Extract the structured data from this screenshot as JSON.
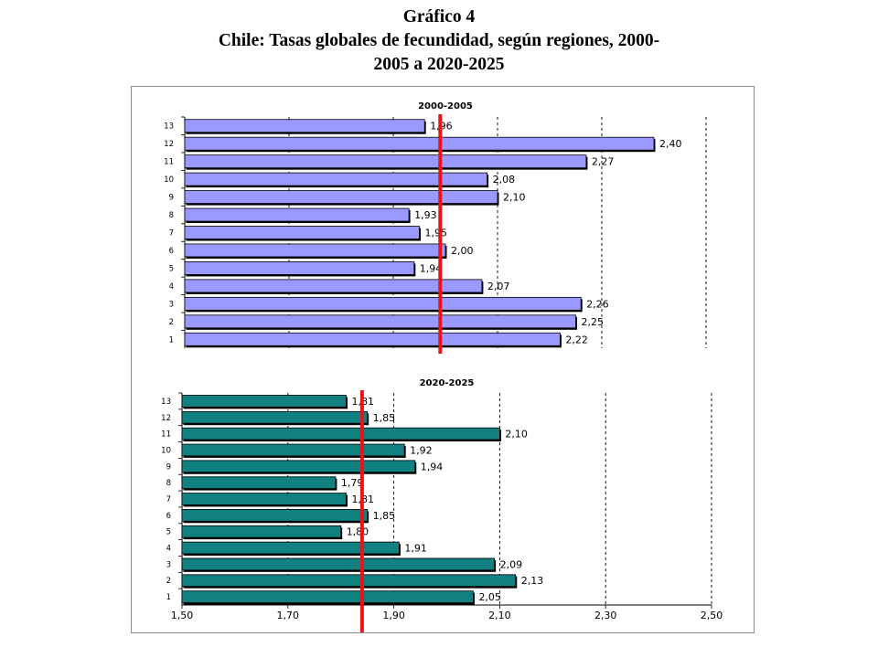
{
  "page": {
    "title_line1": "Gráfico 4",
    "title_line2": "Chile: Tasas globales de fecundidad, según regiones, 2000-",
    "title_line3": "2005 a 2020-2025"
  },
  "chart_data": [
    {
      "type": "bar",
      "orientation": "horizontal",
      "title": "2000-2005",
      "categories": [
        "1",
        "2",
        "3",
        "4",
        "5",
        "6",
        "7",
        "8",
        "9",
        "10",
        "11",
        "12",
        "13"
      ],
      "values": [
        2.22,
        2.25,
        2.26,
        2.07,
        1.94,
        2.0,
        1.95,
        1.93,
        2.1,
        2.08,
        2.27,
        2.4,
        1.96
      ],
      "value_labels": [
        "2,22",
        "2,25",
        "2,26",
        "2,07",
        "1,94",
        "2,00",
        "1,95",
        "1,93",
        "2,10",
        "2,08",
        "2,27",
        "2,40",
        "1,96"
      ],
      "xlim": [
        1.5,
        2.5
      ],
      "xticks": [
        "1,50",
        "1,70",
        "1,90",
        "2,10",
        "2,30",
        "2,50"
      ],
      "reference_line": 1.99,
      "bar_color": "#9999ff",
      "reference_color": "#e8141c",
      "grid": "vertical dashed"
    },
    {
      "type": "bar",
      "orientation": "horizontal",
      "title": "2020-2025",
      "categories": [
        "1",
        "2",
        "3",
        "4",
        "5",
        "6",
        "7",
        "8",
        "9",
        "10",
        "11",
        "12",
        "13"
      ],
      "values": [
        2.05,
        2.13,
        2.09,
        1.91,
        1.8,
        1.85,
        1.81,
        1.79,
        1.94,
        1.92,
        2.1,
        1.85,
        1.81
      ],
      "value_labels": [
        "2,05",
        "2,13",
        "2,09",
        "1,91",
        "1,80",
        "1,85",
        "1,81",
        "1,79",
        "1,94",
        "1,92",
        "2,10",
        "1,85",
        "1,81"
      ],
      "xlim": [
        1.5,
        2.5
      ],
      "xticks": [
        "1,50",
        "1,70",
        "1,90",
        "2,10",
        "2,30",
        "2,50"
      ],
      "reference_line": 1.84,
      "bar_color": "#108080",
      "reference_color": "#e8141c",
      "grid": "vertical dashed"
    }
  ]
}
